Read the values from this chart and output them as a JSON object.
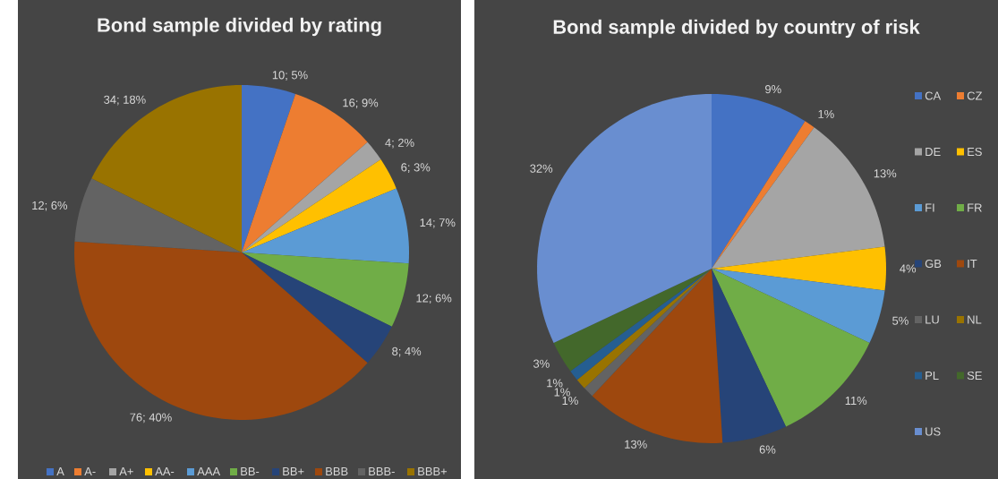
{
  "chart_data": [
    {
      "type": "pie",
      "title": "Bond sample divided by rating",
      "categories": [
        "A",
        "A-",
        "A+",
        "AA-",
        "AAA",
        "BB-",
        "BB+",
        "BBB",
        "BBB-",
        "BBB+"
      ],
      "values": [
        10,
        16,
        4,
        6,
        14,
        12,
        8,
        76,
        12,
        34
      ],
      "colors": [
        "#4472c4",
        "#ed7d31",
        "#a5a5a5",
        "#ffc000",
        "#5b9bd5",
        "#70ad47",
        "#264478",
        "#9e480e",
        "#636363",
        "#997300"
      ],
      "value_labels": [
        "10; 5%",
        "16; 9%",
        "4; 2%",
        "6; 3%",
        "14; 7%",
        "12; 6%",
        "8; 4%",
        "76; 40%",
        "12; 6%",
        "34; 18%"
      ],
      "legend": "bottom"
    },
    {
      "type": "pie",
      "title": "Bond sample divided by country of risk",
      "categories": [
        "CA",
        "CZ",
        "DE",
        "ES",
        "FI",
        "FR",
        "GB",
        "IT",
        "LU",
        "NL",
        "PL",
        "SE",
        "US"
      ],
      "values": [
        9,
        1,
        13,
        4,
        5,
        11,
        6,
        13,
        1,
        1,
        1,
        3,
        32
      ],
      "colors": [
        "#4472c4",
        "#ed7d31",
        "#a5a5a5",
        "#ffc000",
        "#5b9bd5",
        "#70ad47",
        "#264478",
        "#9e480e",
        "#636363",
        "#997300",
        "#255e91",
        "#43682b",
        "#698ed0"
      ],
      "value_labels": [
        "9%",
        "1%",
        "13%",
        "4%",
        "5%",
        "11%",
        "6%",
        "13%",
        "1%",
        "1%",
        "1%",
        "3%",
        "32%"
      ],
      "legend": "right"
    }
  ]
}
